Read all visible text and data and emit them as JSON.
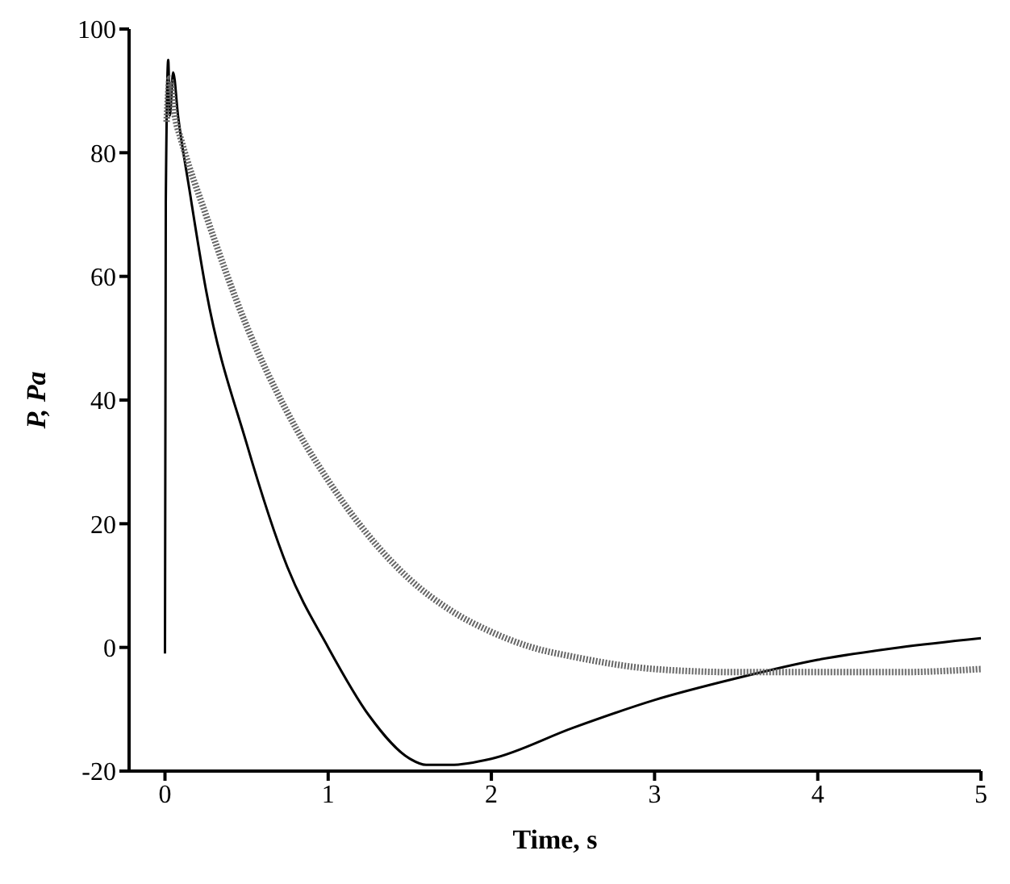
{
  "chart_data": {
    "type": "line",
    "xlabel": "Time, s",
    "ylabel": "P, Pa",
    "xlim": [
      -0.22,
      5
    ],
    "xticks": [
      0,
      1,
      2,
      3,
      4,
      5
    ],
    "ylim": [
      -20,
      100
    ],
    "yticks": [
      -20,
      0,
      20,
      40,
      60,
      80,
      100
    ],
    "grid": false,
    "marker": "none",
    "series": [
      {
        "color": "#000000",
        "line_style": "solid",
        "x": [
          0,
          0.005,
          0.02,
          0.03,
          0.05,
          0.08,
          0.15,
          0.25,
          0.5,
          0.75,
          1.0,
          1.25,
          1.5,
          1.6,
          1.75,
          2.0,
          2.5,
          3.0,
          3.5,
          4.0,
          4.5,
          5.0
        ],
        "values": [
          -1,
          72,
          95,
          86,
          93,
          86,
          74,
          58,
          33,
          13,
          0,
          -11,
          -18,
          -19,
          -19,
          -18,
          -13,
          -8.5,
          -5,
          -2,
          0,
          1.5
        ]
      },
      {
        "color": "#666666",
        "line_style": "dotted",
        "x": [
          0.01,
          0.03,
          0.06,
          0.1,
          0.25,
          0.5,
          0.75,
          1.0,
          1.25,
          1.5,
          1.75,
          2.0,
          2.25,
          2.5,
          3.0,
          3.5,
          4.0,
          4.5,
          5.0
        ],
        "values": [
          85,
          92,
          86,
          82,
          70,
          52,
          38,
          27,
          18,
          11,
          6,
          2.5,
          0,
          -1.5,
          -3.5,
          -4,
          -4,
          -4,
          -3.5
        ]
      }
    ]
  }
}
